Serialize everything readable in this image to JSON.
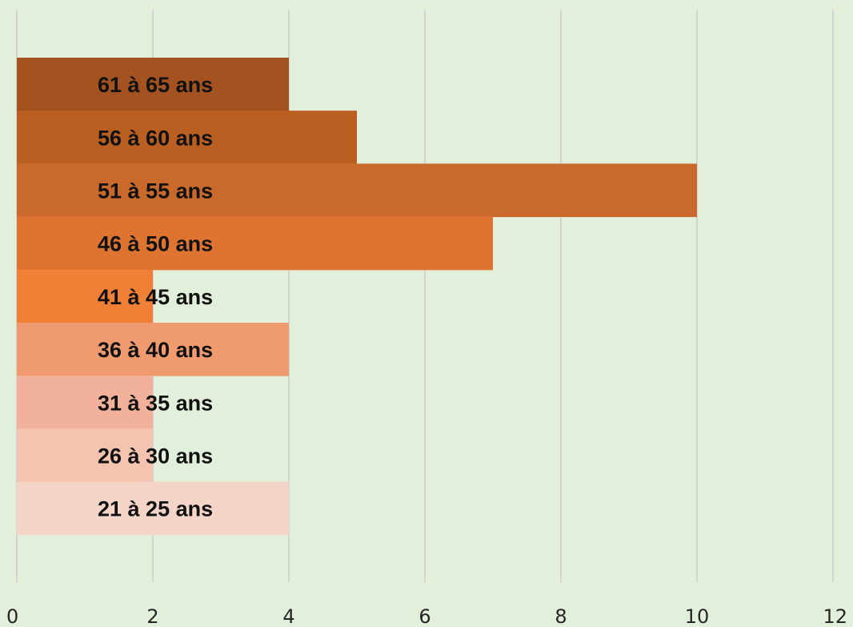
{
  "chart_data": {
    "type": "bar",
    "orientation": "horizontal",
    "categories": [
      "61 à 65 ans",
      "56 à 60 ans",
      "51 à 55 ans",
      "46 à 50 ans",
      "41 à 45 ans",
      "36 à 40 ans",
      "31 à 35 ans",
      "26 à 30 ans",
      "21 à 25 ans"
    ],
    "values": [
      4,
      5,
      10,
      7,
      2,
      4,
      2,
      2,
      4
    ],
    "colors": [
      "#a4521f",
      "#ba5f22",
      "#c96a2c",
      "#de7430",
      "#ef8035",
      "#f09a70",
      "#f2b19a",
      "#f4c4b1",
      "#f5d5c8"
    ],
    "xlim": [
      0,
      12
    ],
    "xticks": [
      "0",
      "2",
      "4",
      "6",
      "8",
      "10",
      "12"
    ],
    "title": "",
    "xlabel": "",
    "ylabel": "",
    "grid": "vertical",
    "legend": "none",
    "background": "#e2efda",
    "gridline_color": "#d4d4d4"
  }
}
